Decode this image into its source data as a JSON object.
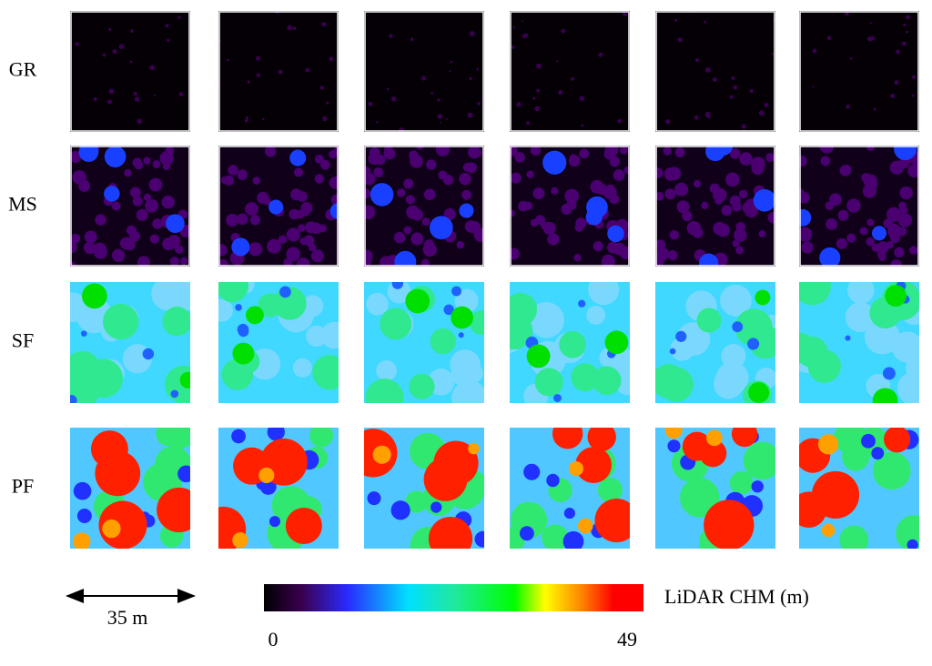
{
  "rows": [
    {
      "label": "GR"
    },
    {
      "label": "MS"
    },
    {
      "label": "SF"
    },
    {
      "label": "PF"
    }
  ],
  "scale_bar": {
    "label": "35 m"
  },
  "colorbar": {
    "label": "LiDAR CHM (m)",
    "ticks": [
      0,
      49
    ]
  }
}
